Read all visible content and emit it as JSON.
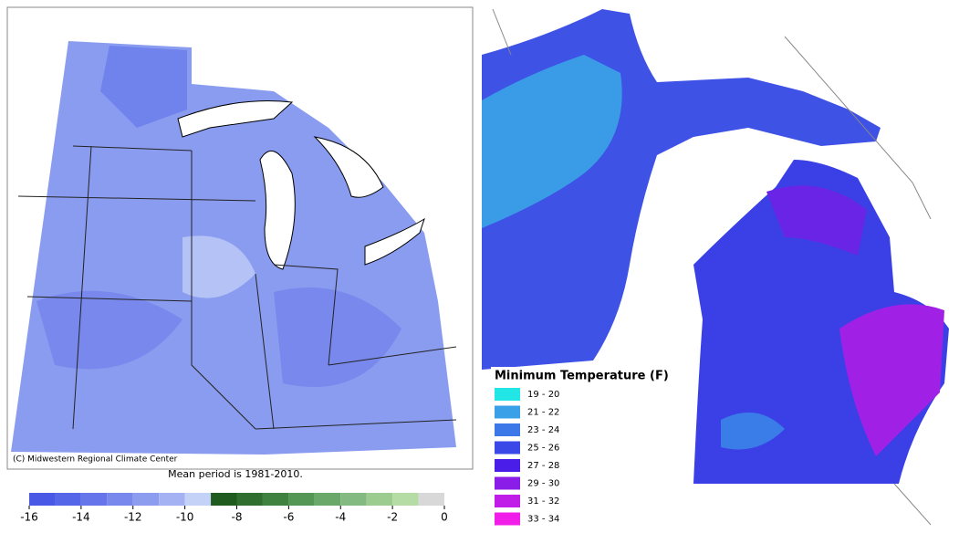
{
  "left_map": {
    "credit": "(C) Midwestern Regional Climate Center",
    "caption": "Mean period is 1981-2010.",
    "colorbar": {
      "ticks": [
        -16,
        -14,
        -12,
        -10,
        -8,
        -6,
        -4,
        -2,
        0
      ],
      "colors": [
        "#4a58e6",
        "#5666e8",
        "#6676ea",
        "#7888ec",
        "#8c9cef",
        "#a4b2f3",
        "#c4d2f8",
        "#1f5a1f",
        "#2f6e2f",
        "#3f823f",
        "#549654",
        "#6aa86a",
        "#82ba82",
        "#9ccc90",
        "#b4dca4",
        "#d8d8d8"
      ]
    }
  },
  "right_map": {
    "legend": {
      "title": "Minimum Temperature (F)",
      "items": [
        {
          "label": "19 - 20",
          "color": "#22e6e6"
        },
        {
          "label": "21 - 22",
          "color": "#3aa0e8"
        },
        {
          "label": "23 - 24",
          "color": "#3c78e8"
        },
        {
          "label": "25 - 26",
          "color": "#3a48e8"
        },
        {
          "label": "27 - 28",
          "color": "#4a1ee8"
        },
        {
          "label": "29 - 30",
          "color": "#8a1ee8"
        },
        {
          "label": "31 - 32",
          "color": "#c01ee8"
        },
        {
          "label": "33 - 34",
          "color": "#f01ee8"
        }
      ]
    }
  }
}
